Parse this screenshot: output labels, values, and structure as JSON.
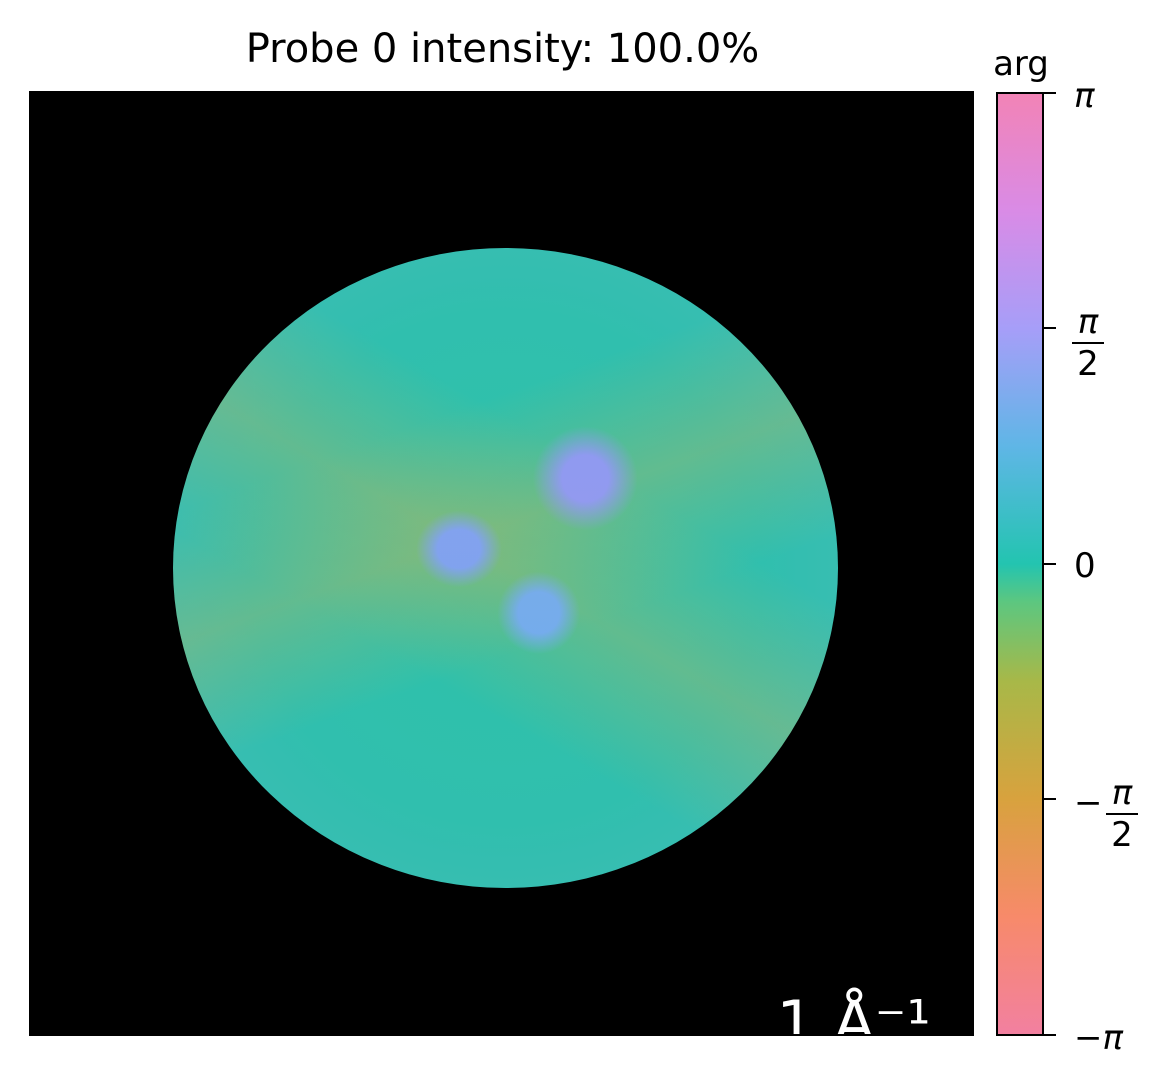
{
  "title": "Probe 0 intensity: 100.0%",
  "scale_bar": {
    "label": "1 Å⁻¹"
  },
  "colorbar": {
    "label": "arg",
    "ticks": [
      {
        "label": "π"
      },
      {
        "numerator": "π",
        "denominator": "2"
      },
      {
        "label": "0"
      },
      {
        "sign": "−",
        "numerator": "π",
        "denominator": "2"
      },
      {
        "label": "−π"
      }
    ],
    "colors": [
      "#f280a0",
      "#d8a23e",
      "#23c4b0",
      "#a69ef8",
      "#f283b6"
    ]
  }
}
